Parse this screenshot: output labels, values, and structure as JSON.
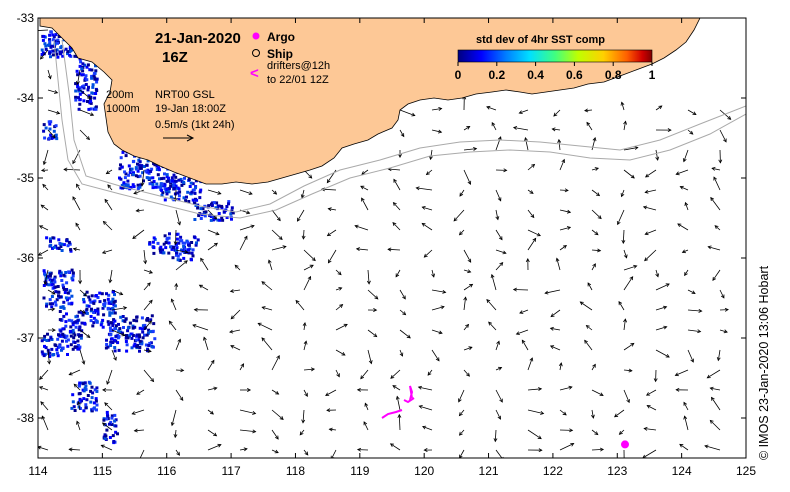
{
  "header": {
    "date": "21-Jan-2020",
    "hour": "16Z"
  },
  "legend": {
    "argo_label": "Argo",
    "ship_label": "Ship",
    "drifter_symbol": "<",
    "drifters_line1": "drifters@12h",
    "drifters_line2": "to 22/01 12Z",
    "argo_color": "#ff00ff",
    "drifter_color": "#ff00ff"
  },
  "info": {
    "depth_200": "200m",
    "depth_1000": "1000m",
    "product": "NRT00 GSL",
    "product_time": "19-Jan 18:00Z",
    "scale_label": "0.5m/s (1kt 24h)"
  },
  "colorbar": {
    "title": "std dev of 4hr SST comp",
    "ticks": [
      "0",
      "0.2",
      "0.4",
      "0.6",
      "0.8",
      "1"
    ],
    "colors": [
      "#000080",
      "#0000ff",
      "#0080ff",
      "#00e0ff",
      "#40ff80",
      "#c0ff00",
      "#ffd000",
      "#ff6000",
      "#d00000",
      "#800000"
    ]
  },
  "axes": {
    "x_ticks": [
      "114",
      "115",
      "116",
      "117",
      "118",
      "119",
      "120",
      "121",
      "122",
      "123",
      "124",
      "125"
    ],
    "y_ticks": [
      "-33",
      "-34",
      "-35",
      "-36",
      "-37",
      "-38"
    ],
    "lon_range": [
      114,
      125
    ],
    "lat_range": [
      -33,
      -38.5
    ]
  },
  "markers": {
    "argo_float": {
      "lon": 123.12,
      "lat": -38.33
    }
  },
  "land_color": "#fdc896",
  "copyright": "© IMOS 23-Jan-2020 13:06 Hobart"
}
